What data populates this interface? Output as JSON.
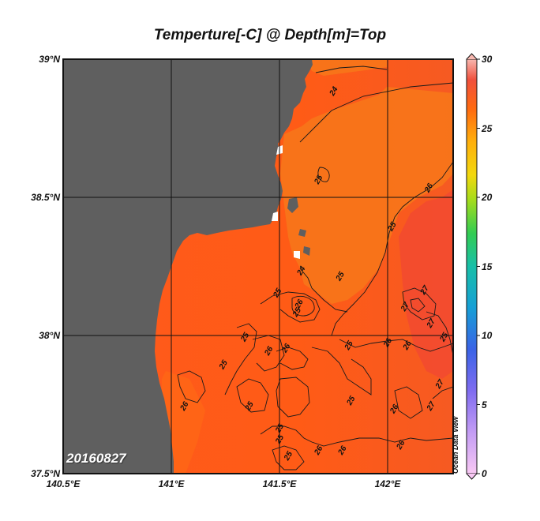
{
  "title": "Temperture[-C] @ Depth[m]=Top",
  "date_stamp": "20160827",
  "watermark": "Ocean Data View",
  "lat_labels": [
    {
      "value": 39.0,
      "text": "39°N"
    },
    {
      "value": 38.5,
      "text": "38.5°N"
    },
    {
      "value": 38.0,
      "text": "38°N"
    },
    {
      "value": 37.5,
      "text": "37.5°N"
    }
  ],
  "lon_labels": [
    {
      "value": 140.5,
      "text": "140.5°E"
    },
    {
      "value": 141.0,
      "text": "141°E"
    },
    {
      "value": 141.5,
      "text": "141.5°E"
    },
    {
      "value": 142.0,
      "text": "142°E"
    }
  ],
  "colorbar": {
    "min": 0,
    "max": 30,
    "ticks": [
      "30",
      "25",
      "20",
      "15",
      "10",
      "5",
      "0"
    ]
  },
  "colors": {
    "land": "#5f5f5f",
    "sea_warm": "#ff5a18",
    "sea_cool": "#f77a14",
    "sea_hot": "#f3482c"
  },
  "contour_labels": [
    {
      "text": "24",
      "lon": 141.76,
      "lat": 38.88
    },
    {
      "text": "25",
      "lon": 141.69,
      "lat": 38.56
    },
    {
      "text": "24",
      "lon": 141.61,
      "lat": 38.23
    },
    {
      "text": "25",
      "lon": 141.79,
      "lat": 38.21
    },
    {
      "text": "25",
      "lon": 141.5,
      "lat": 38.15
    },
    {
      "text": "26",
      "lon": 141.6,
      "lat": 38.11
    },
    {
      "text": "25",
      "lon": 141.59,
      "lat": 38.08
    },
    {
      "text": "25",
      "lon": 141.35,
      "lat": 37.99
    },
    {
      "text": "26",
      "lon": 141.46,
      "lat": 37.94
    },
    {
      "text": "26",
      "lon": 141.54,
      "lat": 37.95
    },
    {
      "text": "25",
      "lon": 141.83,
      "lat": 37.96
    },
    {
      "text": "26",
      "lon": 142.01,
      "lat": 37.97
    },
    {
      "text": "26",
      "lon": 142.1,
      "lat": 37.96
    },
    {
      "text": "25",
      "lon": 141.25,
      "lat": 37.89
    },
    {
      "text": "26",
      "lon": 141.07,
      "lat": 37.74
    },
    {
      "text": "25",
      "lon": 141.37,
      "lat": 37.74
    },
    {
      "text": "25",
      "lon": 141.84,
      "lat": 37.76
    },
    {
      "text": "26",
      "lon": 142.04,
      "lat": 37.73
    },
    {
      "text": "25",
      "lon": 141.51,
      "lat": 37.66
    },
    {
      "text": "25",
      "lon": 141.51,
      "lat": 37.62
    },
    {
      "text": "26",
      "lon": 141.69,
      "lat": 37.58
    },
    {
      "text": "25",
      "lon": 141.55,
      "lat": 37.56
    },
    {
      "text": "26",
      "lon": 141.8,
      "lat": 37.58
    },
    {
      "text": "26",
      "lon": 142.07,
      "lat": 37.6
    },
    {
      "text": "26",
      "lon": 142.2,
      "lat": 38.53
    },
    {
      "text": "25",
      "lon": 142.03,
      "lat": 38.39
    },
    {
      "text": "27",
      "lon": 142.18,
      "lat": 38.16
    },
    {
      "text": "27",
      "lon": 142.09,
      "lat": 38.1
    },
    {
      "text": "27",
      "lon": 142.21,
      "lat": 38.04
    },
    {
      "text": "25",
      "lon": 142.27,
      "lat": 37.99
    },
    {
      "text": "27",
      "lon": 142.25,
      "lat": 37.82
    },
    {
      "text": "27",
      "lon": 142.21,
      "lat": 37.74
    }
  ]
}
